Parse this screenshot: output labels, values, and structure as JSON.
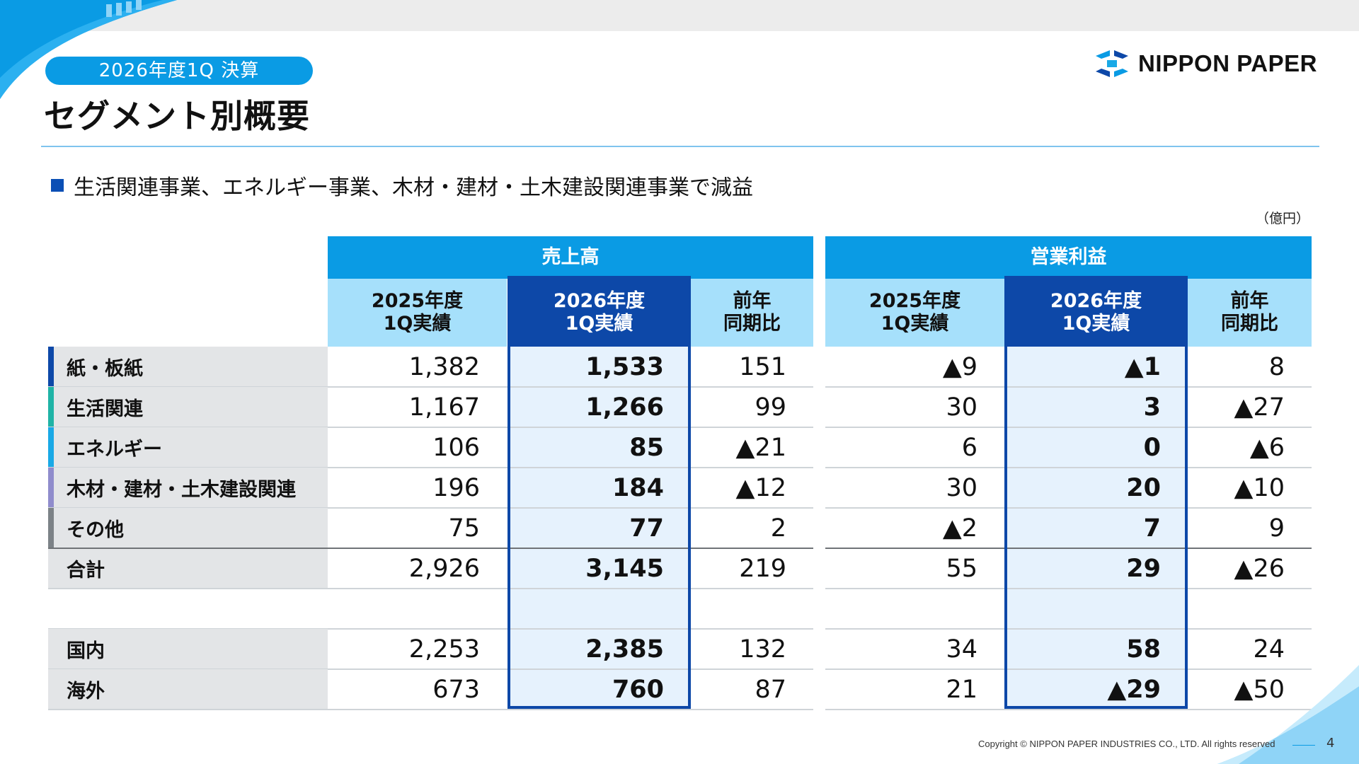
{
  "header": {
    "badge": "2026年度1Q 決算",
    "title": "セグメント別概要",
    "logo_text": "NIPPON PAPER"
  },
  "bullet": "生活関連事業、エネルギー事業、木材・建材・土木建設関連事業で減益",
  "unit": "（億円）",
  "table": {
    "groups": [
      "売上高",
      "営業利益"
    ],
    "subheaders": {
      "prev_year": "2025年度\n1Q実績",
      "curr_year": "2026年度\n1Q実績",
      "yoy": "前年\n同期比"
    },
    "rows": [
      {
        "label": "紙・板紙",
        "accent": "#0d48a8",
        "sales": [
          "1,382",
          "1,533",
          "151"
        ],
        "op": [
          "▲9",
          "▲1",
          "8"
        ]
      },
      {
        "label": "生活関連",
        "accent": "#1fb3a6",
        "sales": [
          "1,167",
          "1,266",
          "99"
        ],
        "op": [
          "30",
          "3",
          "▲27"
        ]
      },
      {
        "label": "エネルギー",
        "accent": "#19a9e6",
        "sales": [
          "106",
          "85",
          "▲21"
        ],
        "op": [
          "6",
          "0",
          "▲6"
        ]
      },
      {
        "label": "木材・建材・土木建設関連",
        "accent": "#8f8ccc",
        "sales": [
          "196",
          "184",
          "▲12"
        ],
        "op": [
          "30",
          "20",
          "▲10"
        ]
      },
      {
        "label": "その他",
        "accent": "#7c8287",
        "sales": [
          "75",
          "77",
          "2"
        ],
        "op": [
          "▲2",
          "7",
          "9"
        ]
      },
      {
        "label": "合計",
        "accent": "",
        "sales": [
          "2,926",
          "3,145",
          "219"
        ],
        "op": [
          "55",
          "29",
          "▲26"
        ]
      }
    ],
    "region_rows": [
      {
        "label": "国内",
        "sales": [
          "2,253",
          "2,385",
          "132"
        ],
        "op": [
          "34",
          "58",
          "24"
        ]
      },
      {
        "label": "海外",
        "sales": [
          "673",
          "760",
          "87"
        ],
        "op": [
          "21",
          "▲29",
          "▲50"
        ]
      }
    ]
  },
  "footer": {
    "copyright": "Copyright © NIPPON PAPER INDUSTRIES CO., LTD. All rights reserved",
    "page": "4"
  },
  "colors": {
    "accent_blue": "#0a9be4",
    "dark_blue": "#0d48a8",
    "light_blue": "#a6e0fb"
  }
}
